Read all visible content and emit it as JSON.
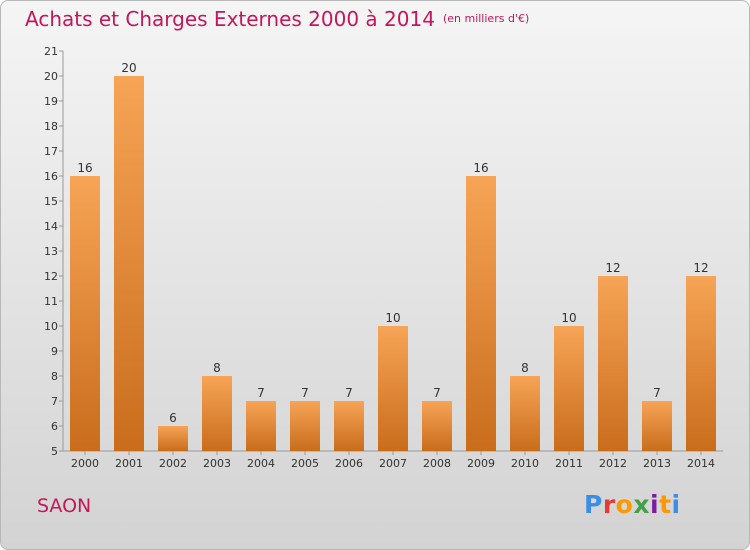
{
  "header": {
    "title": "Achats et Charges Externes 2000 à 2014",
    "subtitle": "(en milliers d'€)"
  },
  "footer": {
    "place": "SAON",
    "logo": "Proxiti",
    "logo_colors": [
      "#3a8ee6",
      "#e53935",
      "#ff9800",
      "#43a047",
      "#7b1fa2",
      "#ff9800",
      "#3a8ee6"
    ]
  },
  "chart_data": {
    "type": "bar",
    "categories": [
      "2000",
      "2001",
      "2002",
      "2003",
      "2004",
      "2005",
      "2006",
      "2007",
      "2008",
      "2009",
      "2010",
      "2011",
      "2012",
      "2013",
      "2014"
    ],
    "values": [
      16,
      20,
      6,
      8,
      7,
      7,
      7,
      10,
      7,
      16,
      8,
      10,
      12,
      7,
      12
    ],
    "data_labels": [
      "16",
      "20",
      "6",
      "8",
      "7",
      "7",
      "7",
      "10",
      "7",
      "16",
      "8",
      "10",
      "12",
      "7",
      "12"
    ],
    "yticks": [
      5,
      6,
      7,
      8,
      9,
      10,
      11,
      12,
      13,
      14,
      15,
      16,
      17,
      18,
      19,
      20,
      21
    ],
    "ylim": [
      5,
      21
    ],
    "grid": false,
    "bar_color": "#f0963c",
    "bar_color_dark": "#c96d1c"
  }
}
